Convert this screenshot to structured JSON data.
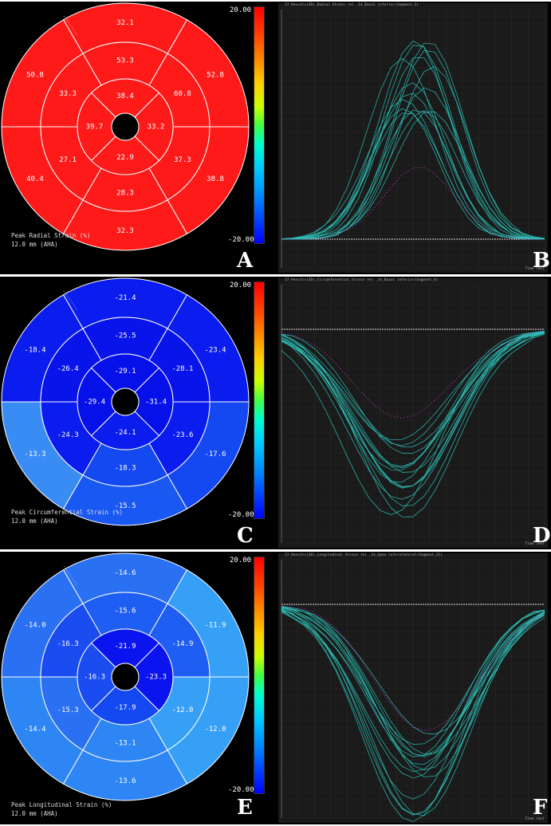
{
  "colors": {
    "panel_a_fill": "#ff1a1a",
    "panel_c_dark": "#0a14ee",
    "panel_c_mid": "#1e5ef2",
    "panel_c_light": "#3b8cf5",
    "panel_e_dark": "#0a14ee",
    "panel_e_mid": "#1f66f2",
    "panel_e_light": "#2f8ef5",
    "trace": "#2bbfb5",
    "highlight": "#d63ad6"
  },
  "colorbar": {
    "max_label": "20.00",
    "min_label": "-20.00"
  },
  "panels": [
    {
      "letter": "A",
      "graph_letter": "B",
      "caption_line1": "Peak Radial Strain (%)",
      "caption_line2": "12.0 mm (AHA)",
      "graph_title": "17 Results(3D)_Radial Strain (%) _14_Basal inferior(Segment_3)",
      "time_label": "Time (ms)",
      "outer": [
        "32.1",
        "52.8",
        "38.8",
        "32.3",
        "40.4",
        "50.8"
      ],
      "mid": [
        "53.3",
        "60.8",
        "37.3",
        "28.3",
        "27.1",
        "33.3"
      ],
      "inner": [
        "38.4",
        "33.2",
        "22.9",
        "39.7"
      ]
    },
    {
      "letter": "C",
      "graph_letter": "D",
      "caption_line1": "Peak Circumferential Strain (%)",
      "caption_line2": "12.0 mm (AHA)",
      "graph_title": "17 Results(3D)_Circumferential Strain (%) _14_Basal inferior(Segment_4)",
      "time_label": "Time (ms)",
      "outer": [
        "-21.4",
        "-23.4",
        "-17.6",
        "-15.5",
        "-13.3",
        "-18.4"
      ],
      "mid": [
        "-25.5",
        "-28.1",
        "-23.6",
        "-18.3",
        "-24.3",
        "-26.4"
      ],
      "inner": [
        "-29.1",
        "-31.4",
        "-24.1",
        "-29.4"
      ]
    },
    {
      "letter": "E",
      "graph_letter": "F",
      "caption_line1": "Peak Longitudinal Strain (%)",
      "caption_line2": "12.0 mm (AHA)",
      "graph_title": "17 Results(3D)_Longitudinal Strain (%) _14_Apex inferolateral(Segment_11)",
      "time_label": "Time (ms)",
      "outer": [
        "-14.6",
        "-11.9",
        "-12.0",
        "-13.6",
        "-14.4",
        "-14.0"
      ],
      "mid": [
        "-15.6",
        "-14.9",
        "-12.0",
        "-13.1",
        "-15.3",
        "-16.3"
      ],
      "inner": [
        "-21.9",
        "-23.3",
        "-17.9",
        "-16.3"
      ]
    }
  ],
  "segment_colors": [
    {
      "outer": [
        "#ff1a1a",
        "#ff1a1a",
        "#ff1a1a",
        "#ff1a1a",
        "#ff1a1a",
        "#ff1a1a"
      ],
      "mid": [
        "#ff1a1a",
        "#ff1a1a",
        "#ff1a1a",
        "#ff1a1a",
        "#ff1a1a",
        "#ff1a1a"
      ],
      "inner": [
        "#ff1a1a",
        "#ff1a1a",
        "#ff1a1a",
        "#ff1a1a"
      ]
    },
    {
      "outer": [
        "#0a1cee",
        "#0a1cee",
        "#1448f0",
        "#1a58f2",
        "#3a8cf5",
        "#0a1cee"
      ],
      "mid": [
        "#0814ea",
        "#0814ea",
        "#0a1cee",
        "#1448f0",
        "#0a1cee",
        "#0814ea"
      ],
      "inner": [
        "#0610e8",
        "#0610e8",
        "#0a1cee",
        "#0610e8"
      ]
    },
    {
      "outer": [
        "#2a70f3",
        "#36a0f7",
        "#36a0f7",
        "#2e86f5",
        "#2e86f5",
        "#2a70f3"
      ],
      "mid": [
        "#1f5ef2",
        "#1f5ef2",
        "#36a0f7",
        "#2e86f5",
        "#2a70f3",
        "#1a4cf0"
      ],
      "inner": [
        "#0a14ee",
        "#0a14ee",
        "#1448f0",
        "#1a4cf0"
      ]
    }
  ]
}
